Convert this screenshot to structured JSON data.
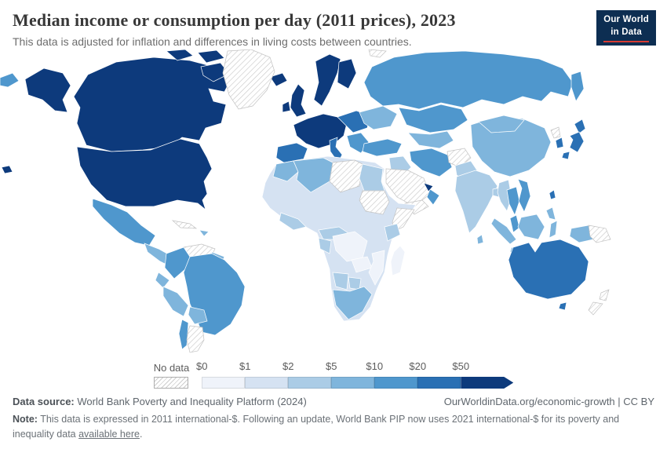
{
  "header": {
    "title": "Median income or consumption per day (2011 prices), 2023",
    "subtitle": "This data is adjusted for inflation and differences in living costs between countries.",
    "logo": {
      "line1": "Our World",
      "line2": "in Data"
    }
  },
  "legend": {
    "no_data_label": "No data"
  },
  "footer": {
    "data_source_label": "Data source:",
    "data_source": "World Bank Poverty and Inequality Platform (2024)",
    "url": "OurWorldinData.org/economic-growth | CC BY",
    "note_label": "Note:",
    "note_text": "This data is expressed in 2011 international-$. Following an update, World Bank PIP now uses 2021 international-$ for its poverty and inequality data",
    "note_link": "available here",
    "note_period": "."
  },
  "chart_data": {
    "type": "heatmap",
    "subtype": "world-choropleth",
    "title": "Median income or consumption per day (2011 prices)",
    "year": "2023",
    "unit": "international-$ per day (2011 prices)",
    "scale_ticks": [
      "$0",
      "$1",
      "$2",
      "$5",
      "$10",
      "$20",
      "$50"
    ],
    "buckets": [
      "$0-$1",
      "$1-$2",
      "$2-$5",
      "$5-$10",
      "$10-$20",
      "$20-$50",
      "$50+"
    ],
    "colors": [
      "#eff3fa",
      "#d5e2f2",
      "#abcce6",
      "#7fb5dc",
      "#4f97cd",
      "#2a70b4",
      "#0d3a7c"
    ],
    "no_data_key": "no-data",
    "legend_position": "bottom",
    "regions": [
      {
        "id": "usa",
        "name": "United States",
        "bucket": "$50+"
      },
      {
        "id": "canada",
        "name": "Canada",
        "bucket": "$50+"
      },
      {
        "id": "greenland",
        "name": "Greenland",
        "bucket": "no-data"
      },
      {
        "id": "mexico",
        "name": "Mexico",
        "bucket": "$10-$20"
      },
      {
        "id": "central-america",
        "name": "Central America",
        "bucket": "$5-$10"
      },
      {
        "id": "cuba",
        "name": "Cuba",
        "bucket": "no-data"
      },
      {
        "id": "hispaniola",
        "name": "Dominican Republic / Haiti",
        "bucket": "$5-$10"
      },
      {
        "id": "venezuela",
        "name": "Venezuela",
        "bucket": "no-data"
      },
      {
        "id": "guyanas",
        "name": "Guyana / Suriname",
        "bucket": "$5-$10"
      },
      {
        "id": "colombia",
        "name": "Colombia",
        "bucket": "$10-$20"
      },
      {
        "id": "ecuador",
        "name": "Ecuador",
        "bucket": "$5-$10"
      },
      {
        "id": "peru",
        "name": "Peru",
        "bucket": "$5-$10"
      },
      {
        "id": "brazil",
        "name": "Brazil",
        "bucket": "$10-$20"
      },
      {
        "id": "bolivia",
        "name": "Bolivia",
        "bucket": "$5-$10"
      },
      {
        "id": "chile",
        "name": "Chile",
        "bucket": "$10-$20"
      },
      {
        "id": "argentina",
        "name": "Argentina",
        "bucket": "no-data"
      },
      {
        "id": "iceland",
        "name": "Iceland",
        "bucket": "$50+"
      },
      {
        "id": "united-kingdom",
        "name": "United Kingdom",
        "bucket": "$50+"
      },
      {
        "id": "ireland",
        "name": "Ireland",
        "bucket": "$50+"
      },
      {
        "id": "scandinavia",
        "name": "Norway / Sweden",
        "bucket": "$50+"
      },
      {
        "id": "finland",
        "name": "Finland",
        "bucket": "$50+"
      },
      {
        "id": "western-europe",
        "name": "Western Europe",
        "bucket": "$50+"
      },
      {
        "id": "iberia",
        "name": "Spain / Portugal",
        "bucket": "$20-$50"
      },
      {
        "id": "italy",
        "name": "Italy",
        "bucket": "$20-$50"
      },
      {
        "id": "eastern-europe",
        "name": "Central / Eastern Europe",
        "bucket": "$20-$50"
      },
      {
        "id": "balkans",
        "name": "Balkans / Greece",
        "bucket": "$10-$20"
      },
      {
        "id": "ukraine",
        "name": "Ukraine / Belarus",
        "bucket": "$5-$10"
      },
      {
        "id": "svalbard",
        "name": "Svalbard",
        "bucket": "no-data"
      },
      {
        "id": "russia",
        "name": "Russia",
        "bucket": "$10-$20"
      },
      {
        "id": "kazakhstan",
        "name": "Kazakhstan",
        "bucket": "$10-$20"
      },
      {
        "id": "central-asia",
        "name": "Central Asia",
        "bucket": "$5-$10"
      },
      {
        "id": "turkey",
        "name": "Turkey",
        "bucket": "$10-$20"
      },
      {
        "id": "levant-iraq",
        "name": "Iraq / Levant",
        "bucket": "$2-$5"
      },
      {
        "id": "saudi-arabia",
        "name": "Saudi Arabia",
        "bucket": "no-data"
      },
      {
        "id": "yemen",
        "name": "Yemen",
        "bucket": "no-data"
      },
      {
        "id": "oman",
        "name": "Oman",
        "bucket": "$10-$20"
      },
      {
        "id": "gulf-states",
        "name": "United Arab Emirates",
        "bucket": "$50+"
      },
      {
        "id": "iran",
        "name": "Iran",
        "bucket": "$10-$20"
      },
      {
        "id": "afghanistan",
        "name": "Afghanistan",
        "bucket": "no-data"
      },
      {
        "id": "pakistan",
        "name": "Pakistan",
        "bucket": "$2-$5"
      },
      {
        "id": "india",
        "name": "India",
        "bucket": "$2-$5"
      },
      {
        "id": "sri-lanka",
        "name": "Sri Lanka",
        "bucket": "$5-$10"
      },
      {
        "id": "bangladesh",
        "name": "Bangladesh",
        "bucket": "$2-$5"
      },
      {
        "id": "myanmar",
        "name": "Myanmar",
        "bucket": "$2-$5"
      },
      {
        "id": "china",
        "name": "China",
        "bucket": "$5-$10"
      },
      {
        "id": "mongolia",
        "name": "Mongolia",
        "bucket": "$5-$10"
      },
      {
        "id": "thailand",
        "name": "Thailand",
        "bucket": "$10-$20"
      },
      {
        "id": "vietnam",
        "name": "Vietnam",
        "bucket": "$10-$20"
      },
      {
        "id": "malaysia",
        "name": "Malaysia",
        "bucket": "$10-$20"
      },
      {
        "id": "north-korea",
        "name": "North Korea",
        "bucket": "no-data"
      },
      {
        "id": "south-korea",
        "name": "South Korea",
        "bucket": "$20-$50"
      },
      {
        "id": "japan",
        "name": "Japan",
        "bucket": "$20-$50"
      },
      {
        "id": "taiwan",
        "name": "Taiwan",
        "bucket": "$20-$50"
      },
      {
        "id": "philippines",
        "name": "Philippines",
        "bucket": "$5-$10"
      },
      {
        "id": "indonesia",
        "name": "Indonesia",
        "bucket": "$5-$10"
      },
      {
        "id": "papua-new-guinea",
        "name": "Papua New Guinea",
        "bucket": "no-data"
      },
      {
        "id": "sahara-sahel",
        "name": "Sahel / West & East Africa (base)",
        "bucket": "$1-$2"
      },
      {
        "id": "morocco",
        "name": "Morocco",
        "bucket": "$5-$10"
      },
      {
        "id": "algeria",
        "name": "Algeria / Tunisia",
        "bucket": "$5-$10"
      },
      {
        "id": "libya",
        "name": "Libya",
        "bucket": "no-data"
      },
      {
        "id": "egypt",
        "name": "Egypt",
        "bucket": "$2-$5"
      },
      {
        "id": "sudan",
        "name": "Sudan / South Sudan",
        "bucket": "no-data"
      },
      {
        "id": "somalia",
        "name": "Somalia",
        "bucket": "no-data"
      },
      {
        "id": "kenya",
        "name": "Kenya",
        "bucket": "$2-$5"
      },
      {
        "id": "ghana-ivory-coast",
        "name": "Ghana / Côte d'Ivoire",
        "bucket": "$2-$5"
      },
      {
        "id": "cameroon",
        "name": "Cameroon / Central African Rep.",
        "bucket": "$2-$5"
      },
      {
        "id": "congo-gabon",
        "name": "Congo / Gabon",
        "bucket": "$2-$5"
      },
      {
        "id": "drc",
        "name": "Democratic Republic of Congo",
        "bucket": "$0-$1"
      },
      {
        "id": "zambia",
        "name": "Zambia",
        "bucket": "$0-$1"
      },
      {
        "id": "mozambique",
        "name": "Mozambique",
        "bucket": "$0-$1"
      },
      {
        "id": "namibia",
        "name": "Namibia",
        "bucket": "$2-$5"
      },
      {
        "id": "botswana",
        "name": "Botswana",
        "bucket": "$2-$5"
      },
      {
        "id": "south-africa",
        "name": "South Africa",
        "bucket": "$5-$10"
      },
      {
        "id": "madagascar",
        "name": "Madagascar",
        "bucket": "$0-$1"
      },
      {
        "id": "australia",
        "name": "Australia",
        "bucket": "$20-$50"
      },
      {
        "id": "new-zealand",
        "name": "New Zealand",
        "bucket": "no-data"
      }
    ]
  }
}
